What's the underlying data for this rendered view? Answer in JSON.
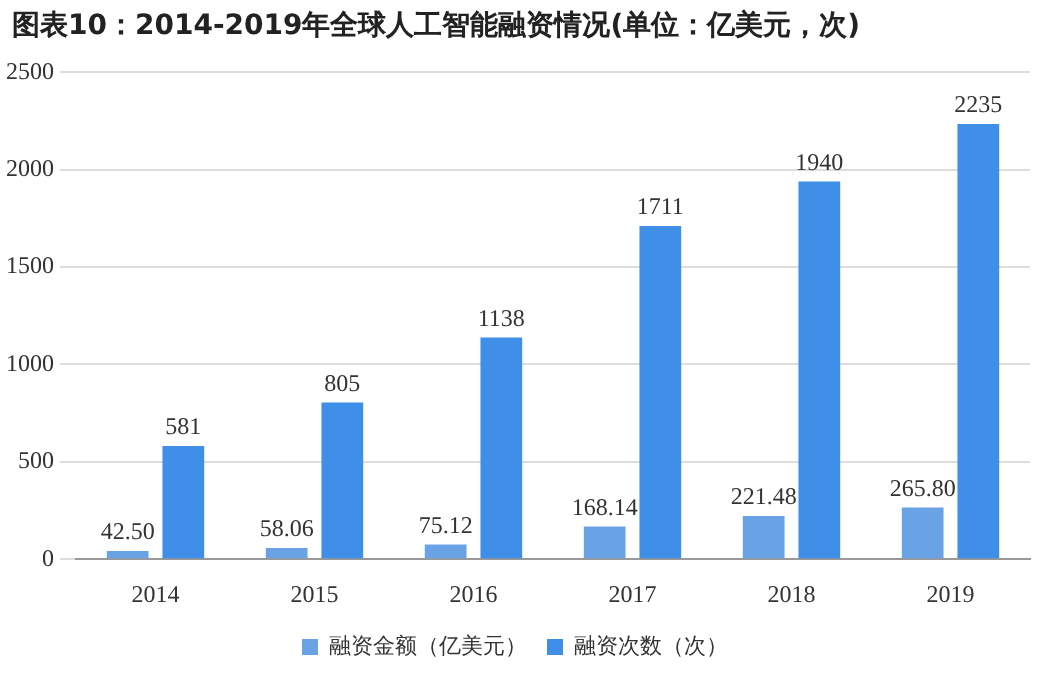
{
  "chart_data": {
    "type": "bar",
    "title": "图表10：2014-2019年全球人工智能融资情况(单位：亿美元，次)",
    "categories": [
      "2014",
      "2015",
      "2016",
      "2017",
      "2018",
      "2019"
    ],
    "series": [
      {
        "name": "融资金额（亿美元）",
        "color": "#6aa2e6",
        "values": [
          42.5,
          58.06,
          75.12,
          168.14,
          221.48,
          265.8
        ],
        "value_labels": [
          "42.50",
          "58.06",
          "75.12",
          "168.14",
          "221.48",
          "265.80"
        ]
      },
      {
        "name": "融资次数（次）",
        "color": "#3f8ee8",
        "values": [
          581,
          805,
          1138,
          1711,
          1940,
          2235
        ],
        "value_labels": [
          "581",
          "805",
          "1138",
          "1711",
          "1940",
          "2235"
        ]
      }
    ],
    "ylim": [
      0,
      2500
    ],
    "yticks": [
      0,
      500,
      1000,
      1500,
      2000,
      2500
    ],
    "grid": "y",
    "legend": "bottom"
  }
}
